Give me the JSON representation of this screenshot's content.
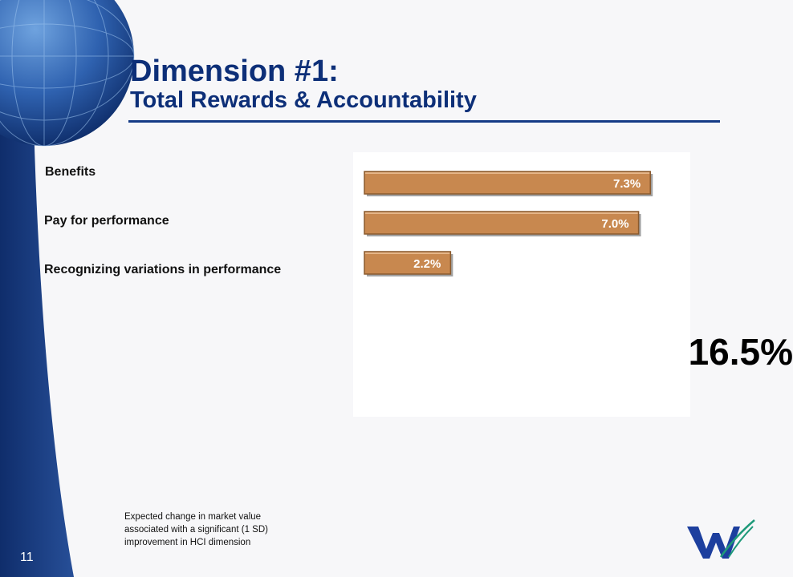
{
  "slide": {
    "title_line1": "Dimension #1:",
    "title_line2": "Total Rewards & Accountability",
    "total": "16.5%",
    "footnote": "Expected change in market value associated with a significant (1 SD) improvement in HCI dimension",
    "page_number": "11"
  },
  "chart_data": {
    "type": "bar",
    "orientation": "horizontal",
    "categories": [
      "Benefits",
      "Pay for performance",
      "Recognizing variations in performance"
    ],
    "values": [
      7.3,
      7.0,
      2.2
    ],
    "data_labels": [
      "7.3%",
      "7.0%",
      "2.2%"
    ],
    "xlim": [
      0,
      7.5
    ],
    "grid": false,
    "legend": "none"
  },
  "colors": {
    "bar": "#c8884f",
    "bar_border": "#8a5a2e",
    "title": "#0d2f78",
    "sidebar": "#1a3e82"
  }
}
